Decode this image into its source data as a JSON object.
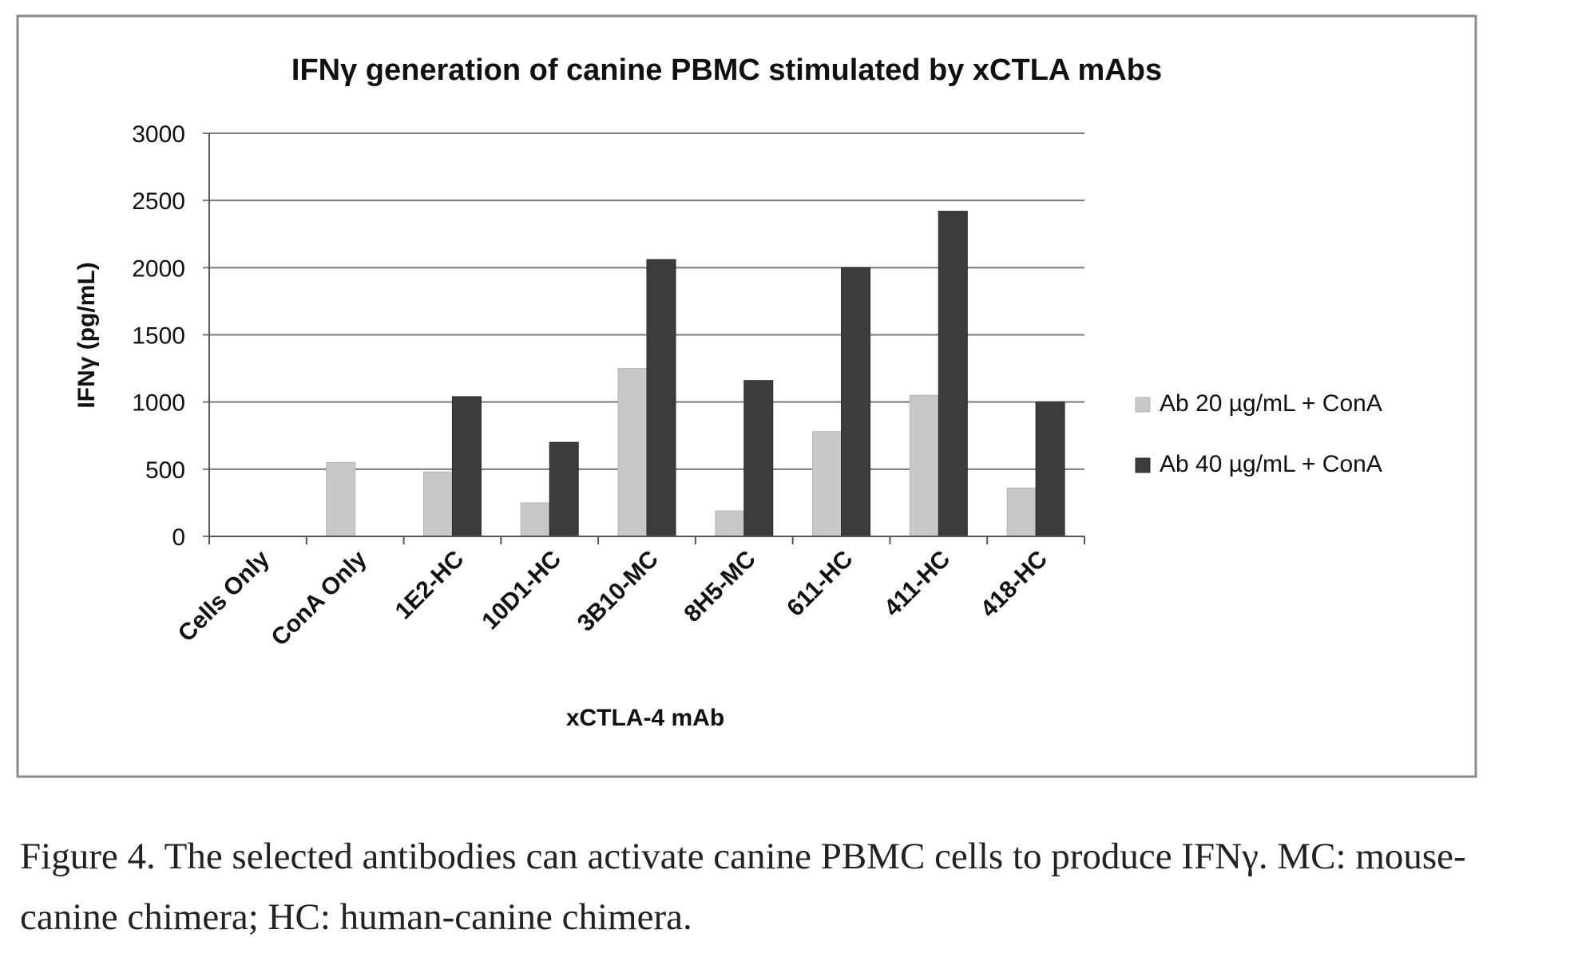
{
  "chart_data": {
    "type": "bar",
    "title": "IFNγ generation of canine PBMC stimulated by xCTLA mAbs",
    "xlabel": "xCTLA-4 mAb",
    "ylabel": "IFNγ (pg/mL)",
    "ylim": [
      0,
      3000
    ],
    "yticks": [
      "0",
      "500",
      "1000",
      "1500",
      "2000",
      "2500",
      "3000"
    ],
    "grid": true,
    "legend_position": "right",
    "categories": [
      "Cells Only",
      "ConA Only",
      "1E2-HC",
      "10D1-HC",
      "3B10-MC",
      "8H5-MC",
      "611-HC",
      "411-HC",
      "418-HC"
    ],
    "series": [
      {
        "name": "Ab 20 µg/mL + ConA",
        "color": "#c8c8c8",
        "values": [
          0,
          550,
          480,
          250,
          1250,
          190,
          780,
          1050,
          360
        ]
      },
      {
        "name": "Ab 40 µg/mL + ConA",
        "color": "#3c3c3c",
        "values": [
          0,
          0,
          1040,
          700,
          2060,
          1160,
          2000,
          2420,
          1000
        ]
      }
    ]
  },
  "caption": "Figure 4. The selected antibodies can activate canine PBMC cells to produce IFNγ. MC: mouse-canine chimera; HC: human-canine chimera."
}
